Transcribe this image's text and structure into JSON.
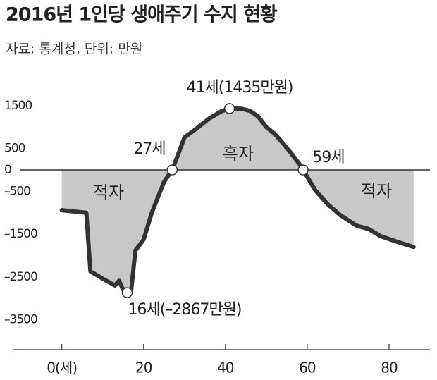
{
  "chart_data": {
    "type": "area-line",
    "title": "2016년 1인당 생애주기 수지 현황",
    "subtitle": "자료: 통계청, 단위: 만원",
    "x": [
      0,
      6,
      7,
      10,
      13,
      14,
      15,
      16,
      17,
      18,
      20,
      22,
      25,
      27,
      30,
      33,
      36,
      39,
      41,
      44,
      46,
      48,
      50,
      52,
      54,
      56,
      58,
      59,
      62,
      65,
      68,
      72,
      75,
      78,
      82,
      86
    ],
    "values": [
      -940,
      -1000,
      -2370,
      -2540,
      -2700,
      -2590,
      -2800,
      -2867,
      -2780,
      -1880,
      -1630,
      -1000,
      -280,
      0,
      760,
      970,
      1200,
      1370,
      1435,
      1430,
      1380,
      1250,
      1000,
      850,
      630,
      400,
      150,
      0,
      -480,
      -800,
      -1050,
      -1300,
      -1380,
      -1550,
      -1680,
      -1800
    ],
    "color": "#333333",
    "fill": "#c8c8c8",
    "xlim": [
      -12,
      90
    ],
    "ylim": [
      -4200,
      2300
    ],
    "xticks": [
      {
        "value": 0,
        "label": "0(세)"
      },
      20,
      40,
      60,
      80
    ],
    "yticks": [
      1500,
      500,
      0,
      {
        "value": -500,
        "label": "–500"
      },
      {
        "value": -1500,
        "label": "–1500"
      },
      {
        "value": -2500,
        "label": "–2500"
      },
      {
        "value": -3500,
        "label": "–3500"
      }
    ],
    "annotations": [
      "41세(1435만원)",
      "27세",
      "59세",
      "16세(–2867만원)"
    ],
    "region_labels": [
      "적자",
      "흑자",
      "적자"
    ]
  }
}
